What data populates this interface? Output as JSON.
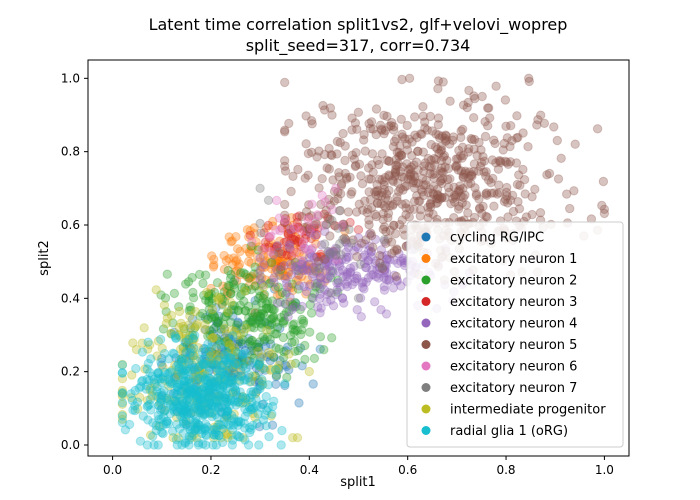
{
  "chart_data": {
    "type": "scatter",
    "title": "Latent time correlation split1vs2, glf+velovi_woprep",
    "subtitle": "split_seed=317, corr=0.734",
    "xlabel": "split1",
    "ylabel": "split2",
    "xlim": [
      -0.05,
      1.05
    ],
    "ylim": [
      -0.03,
      1.05
    ],
    "xticks": [
      "0.0",
      "0.2",
      "0.4",
      "0.6",
      "0.8",
      "1.0"
    ],
    "yticks": [
      "0.0",
      "0.2",
      "0.4",
      "0.6",
      "0.8",
      "1.0"
    ],
    "grid": false,
    "legend_position": "lower right",
    "point_alpha": 0.35,
    "series": [
      {
        "name": "cycling RG/IPC",
        "color": "#1f77b4",
        "n": 180,
        "center": [
          0.24,
          0.24
        ],
        "spread": [
          0.07,
          0.08
        ],
        "range_x": [
          0.1,
          0.45
        ],
        "range_y": [
          0.05,
          0.45
        ]
      },
      {
        "name": "excitatory neuron 1",
        "color": "#ff7f0e",
        "n": 170,
        "center": [
          0.33,
          0.5
        ],
        "spread": [
          0.06,
          0.05
        ],
        "range_x": [
          0.2,
          0.48
        ],
        "range_y": [
          0.36,
          0.62
        ]
      },
      {
        "name": "excitatory neuron 2",
        "color": "#2ca02c",
        "n": 260,
        "center": [
          0.28,
          0.36
        ],
        "spread": [
          0.08,
          0.07
        ],
        "range_x": [
          0.05,
          0.5
        ],
        "range_y": [
          0.12,
          0.58
        ]
      },
      {
        "name": "excitatory neuron 3",
        "color": "#d62728",
        "n": 60,
        "center": [
          0.38,
          0.57
        ],
        "spread": [
          0.05,
          0.035
        ],
        "range_x": [
          0.28,
          0.5
        ],
        "range_y": [
          0.48,
          0.63
        ]
      },
      {
        "name": "excitatory neuron 4",
        "color": "#9467bd",
        "n": 240,
        "center": [
          0.48,
          0.47
        ],
        "spread": [
          0.09,
          0.05
        ],
        "range_x": [
          0.3,
          0.75
        ],
        "range_y": [
          0.35,
          0.62
        ]
      },
      {
        "name": "excitatory neuron 5",
        "color": "#8c564b",
        "n": 650,
        "center": [
          0.64,
          0.71
        ],
        "spread": [
          0.13,
          0.11
        ],
        "range_x": [
          0.35,
          1.0
        ],
        "range_y": [
          0.45,
          1.0
        ]
      },
      {
        "name": "excitatory neuron 6",
        "color": "#e377c2",
        "n": 30,
        "center": [
          0.4,
          0.58
        ],
        "spread": [
          0.06,
          0.05
        ],
        "range_x": [
          0.25,
          0.6
        ],
        "range_y": [
          0.45,
          0.7
        ]
      },
      {
        "name": "excitatory neuron 7",
        "color": "#7f7f7f",
        "n": 30,
        "center": [
          0.45,
          0.55
        ],
        "spread": [
          0.08,
          0.06
        ],
        "range_x": [
          0.3,
          0.65
        ],
        "range_y": [
          0.4,
          0.7
        ]
      },
      {
        "name": "intermediate progenitor",
        "color": "#bcbd22",
        "n": 220,
        "center": [
          0.18,
          0.2
        ],
        "spread": [
          0.08,
          0.1
        ],
        "range_x": [
          0.02,
          0.4
        ],
        "range_y": [
          0.02,
          0.48
        ]
      },
      {
        "name": "radial glia 1 (oRG)",
        "color": "#17becf",
        "n": 550,
        "center": [
          0.18,
          0.13
        ],
        "spread": [
          0.07,
          0.07
        ],
        "range_x": [
          0.02,
          0.55
        ],
        "range_y": [
          0.0,
          0.62
        ]
      }
    ]
  }
}
